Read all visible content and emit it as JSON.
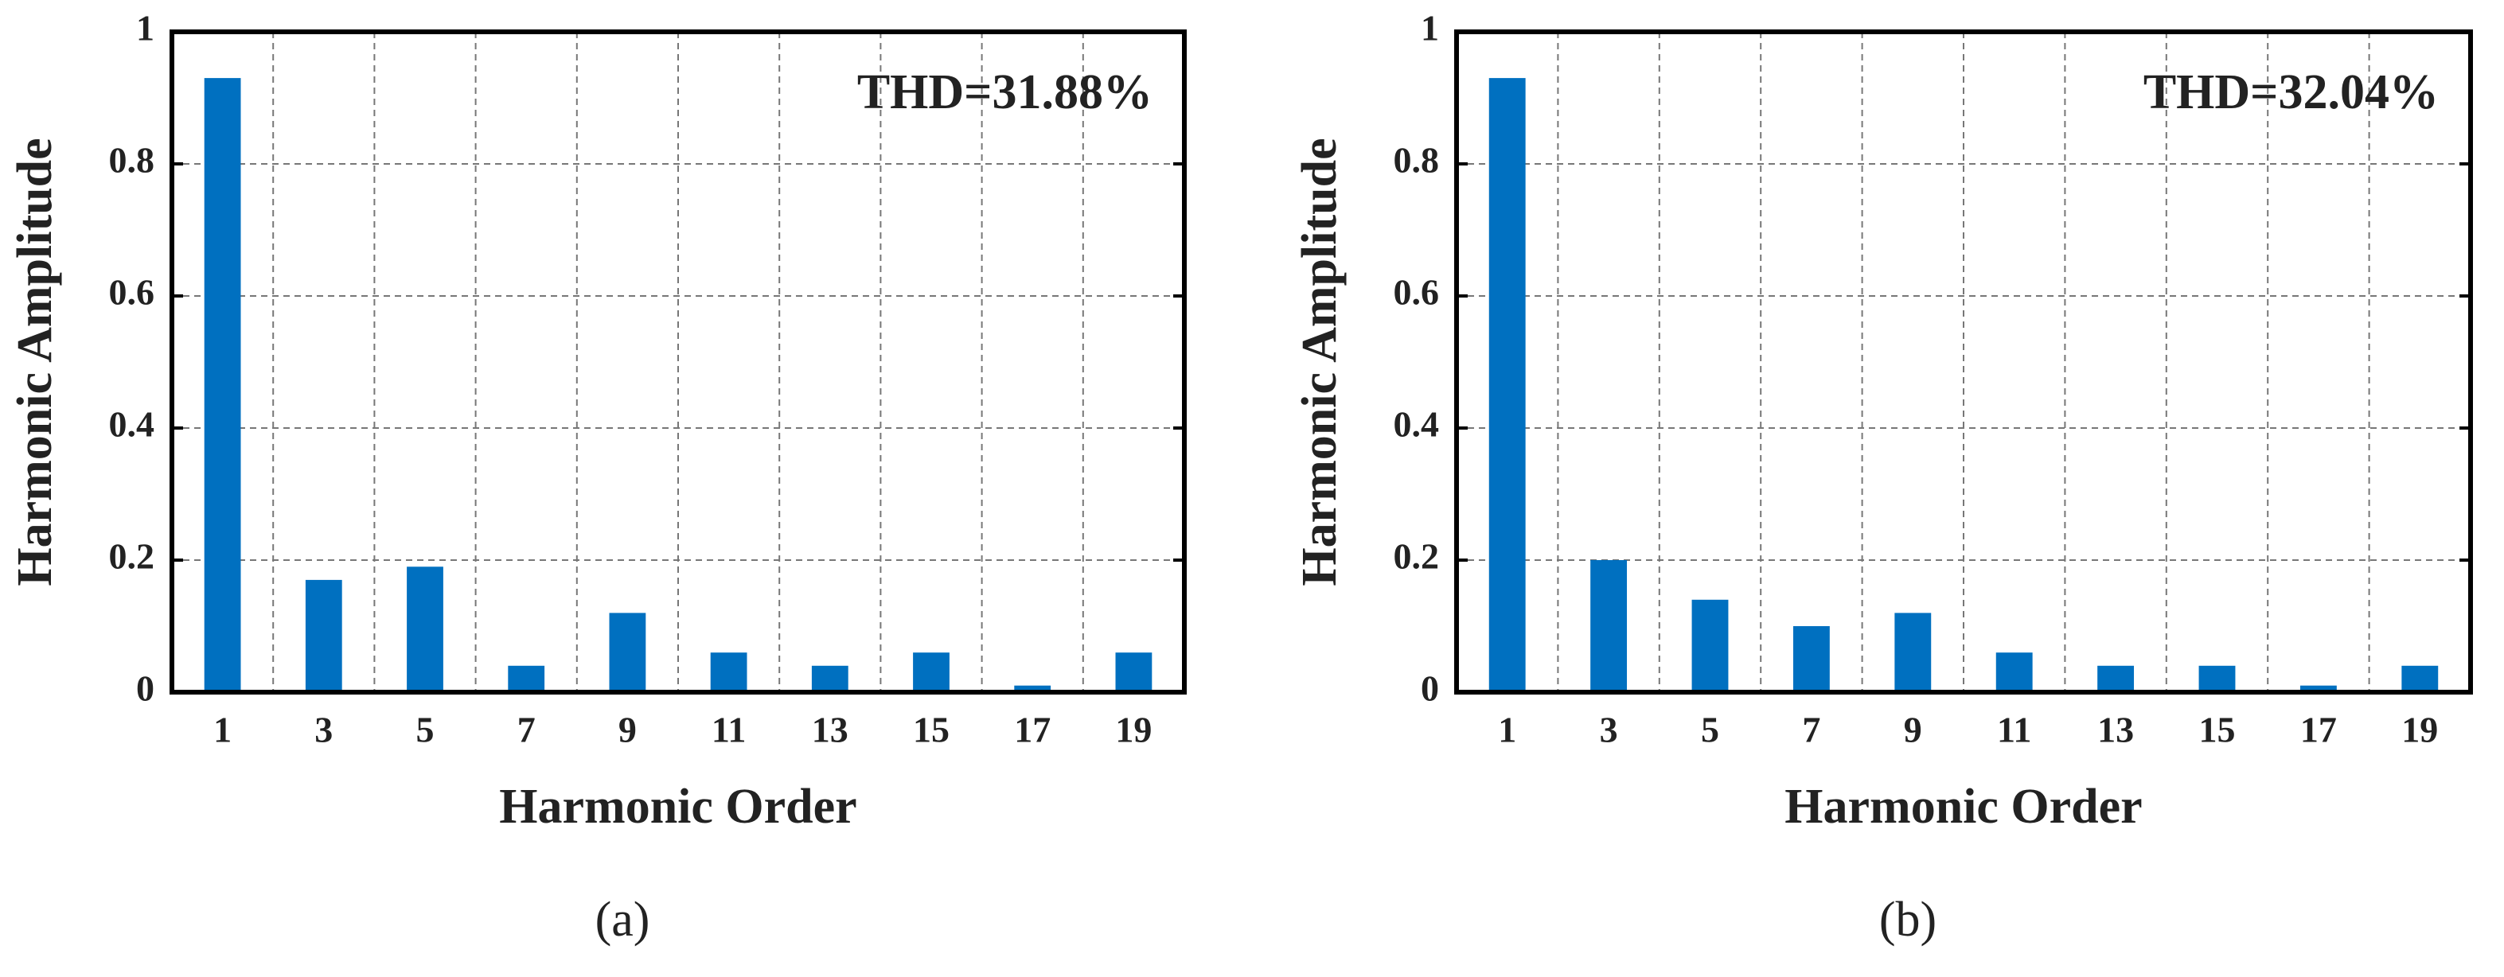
{
  "chart_data": [
    {
      "type": "bar",
      "panel_label": "(a)",
      "annotation": "THD=31.88%",
      "x_label": "Harmonic Order",
      "y_label": "Harmonic Amplitude",
      "categories": [
        "1",
        "3",
        "5",
        "7",
        "9",
        "11",
        "13",
        "15",
        "17",
        "19"
      ],
      "values": [
        0.93,
        0.17,
        0.19,
        0.04,
        0.12,
        0.06,
        0.04,
        0.06,
        0.01,
        0.06
      ],
      "color": "#0070c0",
      "ylim": [
        0,
        1
      ],
      "yticks": [
        0,
        0.2,
        0.4,
        0.6,
        0.8,
        1
      ],
      "grid": true
    },
    {
      "type": "bar",
      "panel_label": "(b)",
      "annotation": "THD=32.04%",
      "x_label": "Harmonic Order",
      "y_label": "Harmonic Amplitude",
      "categories": [
        "1",
        "3",
        "5",
        "7",
        "9",
        "11",
        "13",
        "15",
        "17",
        "19"
      ],
      "values": [
        0.93,
        0.2,
        0.14,
        0.1,
        0.12,
        0.06,
        0.04,
        0.04,
        0.01,
        0.04
      ],
      "color": "#0070c0",
      "ylim": [
        0,
        1
      ],
      "yticks": [
        0,
        0.2,
        0.4,
        0.6,
        0.8,
        1
      ],
      "grid": true
    }
  ]
}
